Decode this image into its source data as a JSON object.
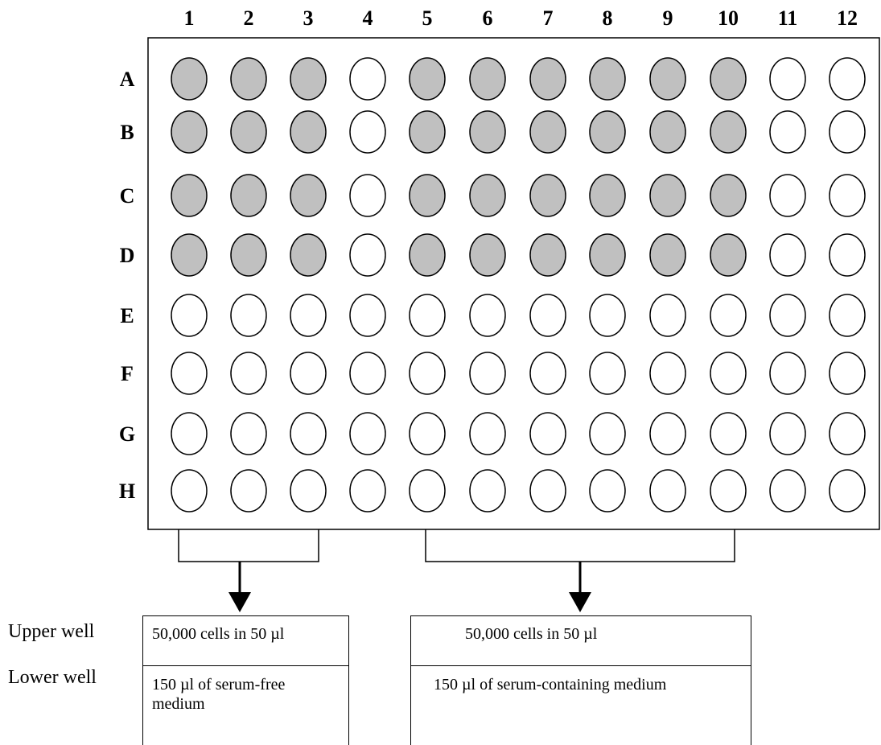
{
  "plate": {
    "columns": [
      "1",
      "2",
      "3",
      "4",
      "5",
      "6",
      "7",
      "8",
      "9",
      "10",
      "11",
      "12"
    ],
    "rows": [
      "A",
      "B",
      "C",
      "D",
      "E",
      "F",
      "G",
      "H"
    ],
    "filled_rows": [
      "A",
      "B",
      "C",
      "D"
    ],
    "filled_columns": [
      "1",
      "2",
      "3",
      "5",
      "6",
      "7",
      "8",
      "9",
      "10"
    ],
    "filled_color": "#c0c0c0",
    "empty_color": "#ffffff"
  },
  "groups": [
    {
      "columns": "1-3",
      "upper": "50,000 cells in 50 µl",
      "lower": "150 µl of serum-free medium"
    },
    {
      "columns": "5-10",
      "upper": "50,000 cells in 50 µl",
      "lower": "150 µl of serum-containing medium"
    }
  ],
  "labels": {
    "upper_well": "Upper well",
    "lower_well": "Lower well"
  }
}
